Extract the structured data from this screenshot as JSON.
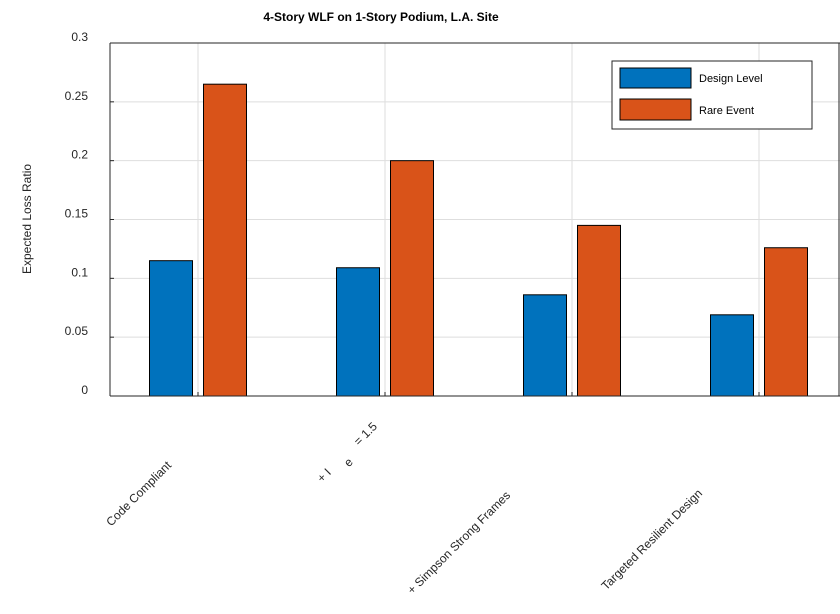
{
  "chart_data": {
    "type": "bar",
    "title": "4-Story WLF on 1-Story Podium, L.A. Site",
    "ylabel": "Expected Loss Ratio",
    "xlabel": "",
    "ylim": [
      0,
      0.3
    ],
    "yticks": [
      "0",
      "0.05",
      "0.1",
      "0.15",
      "0.2",
      "0.25",
      "0.3"
    ],
    "grid": true,
    "legend_position": "top-right",
    "categories": [
      "Code Compliant",
      "+ I",
      "+ Simpson Strong Frames",
      "Targeted Resilient Design"
    ],
    "category_annotation": {
      "subscript": "e",
      "suffix": "= 1.5"
    },
    "series": [
      {
        "name": "Design Level",
        "color": "#0072BD",
        "values": [
          0.115,
          0.109,
          0.086,
          0.069
        ]
      },
      {
        "name": "Rare Event",
        "color": "#D95319",
        "values": [
          0.265,
          0.2,
          0.145,
          0.126
        ]
      }
    ]
  }
}
